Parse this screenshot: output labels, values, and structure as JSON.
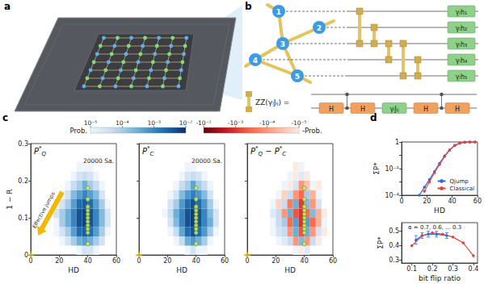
{
  "panel_labels": [
    "a",
    "b",
    "c",
    "d"
  ],
  "diagram": {
    "nodes": [
      "1",
      "2",
      "3",
      "4",
      "5"
    ],
    "edges": [
      [
        1,
        3
      ],
      [
        2,
        3
      ],
      [
        3,
        4
      ],
      [
        3,
        5
      ],
      [
        4,
        5
      ]
    ],
    "gates": [
      "γₗh₁",
      "γₗh₂",
      "γₗh₃",
      "γₗh₄",
      "γₗh₅"
    ],
    "zz_label": "ZZ(γₗJᵢⱼ) =",
    "zz_decomposition": [
      "H",
      "H",
      "γₗJᵢⱼ",
      "H",
      "H"
    ]
  },
  "colorbars": [
    {
      "title": "Prob.",
      "range": [
        1e-05,
        0.01
      ],
      "ticks": [
        {
          "value": 1e-05,
          "label": "10⁻⁵"
        },
        {
          "value": 0.0001,
          "label": "10⁻⁴"
        },
        {
          "value": 0.001,
          "label": "10⁻³"
        },
        {
          "value": 0.01,
          "label": "10⁻²"
        }
      ]
    },
    {
      "title": "-Prob.",
      "range": [
        -0.01,
        -1e-05
      ],
      "ticks": [
        {
          "value": -0.01,
          "label": "-10⁻²"
        },
        {
          "value": -0.001,
          "label": "-10⁻³"
        },
        {
          "value": -0.0001,
          "label": "-10⁻⁴"
        },
        {
          "value": -1e-05,
          "label": "-10⁻⁵"
        }
      ]
    }
  ],
  "chart_data": [
    {
      "type": "heatmap",
      "title": "P*Q",
      "annotation": "20000 Sa.",
      "arrow_label": "Effective jumps",
      "xlabel": "HD",
      "ylabel": "1 − R",
      "xlim": [
        0,
        60
      ],
      "xticks": [
        0,
        20,
        40,
        60
      ],
      "ylim": [
        0,
        0.3
      ],
      "yticks": [
        0,
        0.1,
        0.2,
        0.3
      ],
      "grid": false,
      "x_edges": [
        0,
        4,
        8,
        12,
        16,
        20,
        24,
        28,
        32,
        36,
        40,
        44,
        48,
        52,
        56,
        60
      ],
      "y_edges": [
        0,
        0.025,
        0.05,
        0.075,
        0.1,
        0.125,
        0.15,
        0.175,
        0.2,
        0.225,
        0.25,
        0.275,
        0.3
      ],
      "cells": [
        [
          null,
          null,
          null,
          null,
          null,
          null,
          null,
          null,
          1e-05,
          3e-05,
          3e-05,
          1e-05,
          null,
          null,
          null
        ],
        [
          null,
          null,
          null,
          null,
          null,
          1e-05,
          3e-05,
          0.0001,
          0.0003,
          0.0005,
          0.0003,
          0.0001,
          3e-05,
          null,
          null
        ],
        [
          null,
          null,
          null,
          null,
          1e-05,
          3e-05,
          0.0001,
          0.0005,
          0.002,
          0.003,
          0.002,
          0.0005,
          0.0001,
          1e-05,
          null
        ],
        [
          null,
          null,
          null,
          null,
          1e-05,
          0.0001,
          0.0003,
          0.001,
          0.004,
          0.006,
          0.004,
          0.001,
          0.0002,
          3e-05,
          null
        ],
        [
          null,
          null,
          null,
          null,
          3e-05,
          0.0001,
          0.0003,
          0.001,
          0.004,
          0.006,
          0.004,
          0.001,
          0.0002,
          3e-05,
          null
        ],
        [
          null,
          null,
          null,
          null,
          1e-05,
          3e-05,
          0.0001,
          0.0005,
          0.002,
          0.003,
          0.002,
          0.0005,
          0.0001,
          1e-05,
          null
        ],
        [
          null,
          null,
          null,
          null,
          null,
          1e-05,
          3e-05,
          0.0002,
          0.0005,
          0.001,
          0.0005,
          0.0002,
          3e-05,
          null,
          null
        ],
        [
          null,
          null,
          null,
          null,
          null,
          null,
          1e-05,
          5e-05,
          0.0001,
          0.0003,
          0.0001,
          5e-05,
          1e-05,
          null,
          null
        ],
        [
          null,
          null,
          null,
          null,
          null,
          null,
          null,
          1e-05,
          3e-05,
          5e-05,
          3e-05,
          1e-05,
          null,
          null,
          null
        ],
        [
          null,
          null,
          null,
          null,
          null,
          null,
          null,
          null,
          1e-05,
          1e-05,
          1e-05,
          null,
          null,
          null,
          null
        ],
        [
          null,
          null,
          null,
          null,
          null,
          null,
          null,
          null,
          null,
          null,
          null,
          null,
          null,
          null,
          null
        ],
        [
          null,
          null,
          null,
          null,
          null,
          null,
          null,
          null,
          null,
          null,
          null,
          null,
          null,
          null,
          null
        ]
      ],
      "points": {
        "x": [
          40,
          40,
          40,
          40,
          40,
          40,
          40,
          40,
          40,
          40,
          40
        ],
        "y": [
          0.03,
          0.06,
          0.07,
          0.08,
          0.09,
          0.1,
          0.11,
          0.12,
          0.13,
          0.15,
          0.18
        ],
        "color": "#f5e34b",
        "marker": "circle"
      },
      "start_point": {
        "x": 0,
        "y": 0,
        "color": "#f5b800",
        "marker": "star"
      }
    },
    {
      "type": "heatmap",
      "title": "P*C",
      "annotation": "20000 Sa.",
      "xlabel": "HD",
      "xlim": [
        0,
        60
      ],
      "xticks": [
        0,
        20,
        40,
        60
      ],
      "ylim": [
        0,
        0.3
      ],
      "yticks": [
        0,
        0.1,
        0.2,
        0.3
      ],
      "grid": false,
      "tick_labels": "x",
      "x_edges": [
        0,
        4,
        8,
        12,
        16,
        20,
        24,
        28,
        32,
        36,
        40,
        44,
        48,
        52,
        56,
        60
      ],
      "y_edges": [
        0,
        0.025,
        0.05,
        0.075,
        0.1,
        0.125,
        0.15,
        0.175,
        0.2,
        0.225,
        0.25,
        0.275,
        0.3
      ],
      "cells": [
        [
          null,
          null,
          null,
          null,
          null,
          null,
          null,
          null,
          1e-05,
          3e-05,
          1e-05,
          1e-05,
          null,
          null,
          null
        ],
        [
          null,
          null,
          null,
          null,
          null,
          null,
          1e-05,
          5e-05,
          0.0003,
          0.0006,
          0.0003,
          0.0001,
          1e-05,
          null,
          null
        ],
        [
          null,
          null,
          null,
          null,
          null,
          1e-05,
          5e-05,
          0.0004,
          0.002,
          0.004,
          0.002,
          0.0006,
          0.0001,
          1e-05,
          null
        ],
        [
          null,
          null,
          null,
          null,
          null,
          3e-05,
          0.0002,
          0.001,
          0.004,
          0.007,
          0.004,
          0.001,
          0.0003,
          3e-05,
          null
        ],
        [
          null,
          null,
          null,
          null,
          1e-05,
          5e-05,
          0.0003,
          0.001,
          0.004,
          0.007,
          0.004,
          0.001,
          0.0002,
          3e-05,
          null
        ],
        [
          null,
          null,
          null,
          null,
          null,
          3e-05,
          0.0001,
          0.0006,
          0.002,
          0.004,
          0.002,
          0.0006,
          0.0001,
          1e-05,
          null
        ],
        [
          null,
          null,
          null,
          null,
          null,
          1e-05,
          3e-05,
          0.0002,
          0.0006,
          0.0012,
          0.0006,
          0.0002,
          3e-05,
          null,
          null
        ],
        [
          null,
          null,
          null,
          null,
          null,
          null,
          1e-05,
          5e-05,
          0.0001,
          0.0004,
          0.0001,
          5e-05,
          1e-05,
          null,
          null
        ],
        [
          null,
          null,
          null,
          null,
          null,
          null,
          null,
          1e-05,
          3e-05,
          5e-05,
          3e-05,
          1e-05,
          null,
          null,
          null
        ],
        [
          null,
          null,
          null,
          null,
          null,
          null,
          null,
          null,
          1e-05,
          1e-05,
          null,
          null,
          null,
          null,
          null
        ],
        [
          null,
          null,
          null,
          null,
          null,
          null,
          null,
          null,
          null,
          null,
          null,
          null,
          null,
          null,
          null
        ],
        [
          null,
          null,
          null,
          null,
          null,
          null,
          null,
          null,
          null,
          null,
          null,
          null,
          null,
          null,
          null
        ]
      ],
      "points": {
        "x": [
          40,
          40,
          40,
          40,
          40,
          40,
          40,
          40,
          40,
          40,
          40
        ],
        "y": [
          0.03,
          0.06,
          0.07,
          0.08,
          0.09,
          0.1,
          0.11,
          0.12,
          0.13,
          0.15,
          0.18
        ],
        "color": "#f5e34b",
        "marker": "circle"
      },
      "start_point": {
        "x": 0,
        "y": 0,
        "color": "#f5b800",
        "marker": "star"
      }
    },
    {
      "type": "heatmap",
      "title": "P*Q − P*C",
      "xlabel": "HD",
      "xlim": [
        0,
        60
      ],
      "xticks": [
        0,
        20,
        40,
        60
      ],
      "ylim": [
        0,
        0.3
      ],
      "yticks": [
        0,
        0.1,
        0.2,
        0.3
      ],
      "grid": false,
      "tick_labels": "x",
      "x_edges": [
        0,
        4,
        8,
        12,
        16,
        20,
        24,
        28,
        32,
        36,
        40,
        44,
        48,
        52,
        56,
        60
      ],
      "y_edges": [
        0,
        0.025,
        0.05,
        0.075,
        0.1,
        0.125,
        0.15,
        0.175,
        0.2,
        0.225,
        0.25,
        0.275,
        0.3
      ],
      "cells": [
        [
          null,
          null,
          null,
          null,
          null,
          null,
          null,
          null,
          1e-05,
          -1e-05,
          2e-05,
          null,
          null,
          null,
          null
        ],
        [
          null,
          null,
          null,
          null,
          null,
          1e-05,
          2e-05,
          5e-05,
          -0.0001,
          0.0002,
          -0.0001,
          5e-05,
          -1e-05,
          null,
          null
        ],
        [
          null,
          null,
          null,
          null,
          1e-05,
          3e-05,
          5e-05,
          -0.0001,
          0.0003,
          -0.0005,
          0.0003,
          -0.0001,
          3e-05,
          -1e-05,
          null
        ],
        [
          null,
          null,
          null,
          null,
          1e-05,
          5e-05,
          0.0001,
          -0.0003,
          0.0005,
          -0.001,
          0.0005,
          -0.0003,
          -5e-05,
          1e-05,
          null
        ],
        [
          null,
          null,
          null,
          null,
          2e-05,
          5e-05,
          -0.0001,
          0.0003,
          -0.0005,
          -0.001,
          -0.0003,
          0.0002,
          -5e-05,
          -1e-05,
          null
        ],
        [
          null,
          null,
          null,
          null,
          1e-05,
          -2e-05,
          5e-05,
          -0.0002,
          0.0003,
          -0.0008,
          0.0002,
          -0.0001,
          3e-05,
          null,
          null
        ],
        [
          null,
          null,
          null,
          null,
          null,
          1e-05,
          -2e-05,
          5e-05,
          -0.0001,
          -0.0003,
          0.0001,
          -5e-05,
          1e-05,
          null,
          null
        ],
        [
          null,
          null,
          null,
          null,
          null,
          null,
          1e-05,
          -1e-05,
          3e-05,
          -0.0001,
          -3e-05,
          1e-05,
          -1e-05,
          null,
          null
        ],
        [
          null,
          null,
          null,
          null,
          null,
          null,
          null,
          1e-05,
          -1e-05,
          2e-05,
          -1e-05,
          null,
          null,
          null,
          null
        ],
        [
          null,
          null,
          null,
          null,
          null,
          null,
          null,
          null,
          -1e-05,
          1e-05,
          null,
          null,
          null,
          null,
          null
        ],
        [
          null,
          null,
          null,
          null,
          null,
          null,
          null,
          null,
          null,
          null,
          null,
          null,
          null,
          null,
          null
        ],
        [
          null,
          null,
          null,
          null,
          null,
          null,
          null,
          null,
          null,
          null,
          null,
          null,
          null,
          null,
          null
        ]
      ],
      "points": {
        "x": [
          40,
          40,
          40,
          40,
          40,
          40,
          40,
          40,
          40,
          40,
          40
        ],
        "y": [
          0.03,
          0.06,
          0.07,
          0.08,
          0.09,
          0.1,
          0.11,
          0.12,
          0.13,
          0.15,
          0.18
        ],
        "color": "#f5e34b",
        "marker": "circle"
      },
      "start_point": {
        "x": 0,
        "y": 0,
        "color": "#f5b800",
        "marker": "star"
      }
    },
    {
      "type": "line",
      "xlabel": "HD",
      "ylabel": "ΣP*",
      "log": "y",
      "xlim": [
        0,
        60
      ],
      "xticks": [
        0,
        20,
        40,
        60
      ],
      "ylim": [
        0.0001,
        1
      ],
      "yticks": [
        {
          "value": 0.0001,
          "label": "10⁻⁴"
        },
        {
          "value": 0.01,
          "label": "10⁻²"
        },
        1
      ],
      "legend": "lower right",
      "grid": false,
      "series": [
        {
          "name": "Qjump",
          "color": "#2f6fd6",
          "marker": "circle",
          "x": [
            14,
            18,
            22,
            26,
            30,
            34,
            38,
            42,
            46,
            50,
            54,
            58
          ],
          "values": [
            0.0001,
            0.0004,
            0.0015,
            0.006,
            0.025,
            0.09,
            0.25,
            0.55,
            0.82,
            0.95,
            0.99,
            1
          ]
        },
        {
          "name": "Classical",
          "color": "#e0443a",
          "marker": "circle",
          "x": [
            18,
            22,
            26,
            30,
            34,
            38,
            42,
            46,
            50,
            54,
            58
          ],
          "values": [
            0.0002,
            0.001,
            0.005,
            0.02,
            0.08,
            0.25,
            0.56,
            0.84,
            0.96,
            0.995,
            1
          ]
        }
      ]
    },
    {
      "type": "line",
      "xlabel": "bit flip ratio",
      "ylabel": "ΣP*",
      "annotation": "α = 0.7, 0.6, ... 0.3",
      "xlim": [
        0.05,
        0.42
      ],
      "xticks": [
        0.1,
        0.2,
        0.3,
        0.4
      ],
      "ylim": [
        0.28,
        0.56
      ],
      "yticks": [
        0.3,
        0.4,
        0.5
      ],
      "grid": false,
      "series": [
        {
          "name": "Qjump",
          "color": "#2f6fd6",
          "marker": "circle",
          "x": [
            0.12,
            0.15,
            0.18,
            0.22,
            0.27
          ],
          "values": [
            0.44,
            0.47,
            0.48,
            0.48,
            0.47
          ],
          "errors": [
            0.03,
            0.02,
            0.02,
            0.02,
            0.02
          ]
        },
        {
          "name": "Classical",
          "color": "#e0443a",
          "marker": "circle",
          "x": [
            0.1,
            0.15,
            0.2,
            0.25,
            0.3,
            0.35,
            0.4
          ],
          "values": [
            0.4,
            0.47,
            0.49,
            0.48,
            0.46,
            0.42,
            0.33
          ]
        }
      ]
    }
  ]
}
